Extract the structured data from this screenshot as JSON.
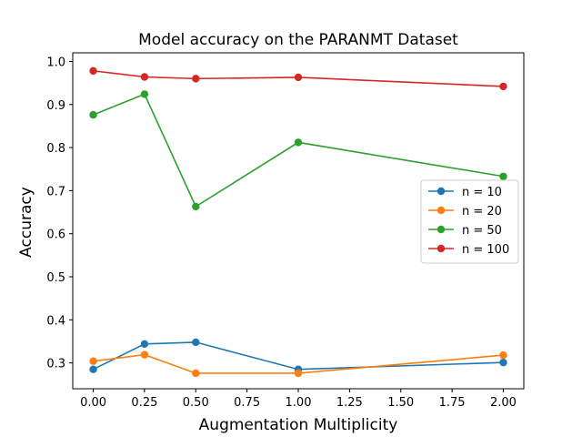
{
  "chart_data": {
    "type": "line",
    "title": "Model accuracy on the PARANMT Dataset",
    "xlabel": "Augmentation Multiplicity",
    "ylabel": "Accuracy",
    "x": [
      0.0,
      0.25,
      0.5,
      1.0,
      2.0
    ],
    "xlim": [
      -0.1,
      2.1
    ],
    "ylim": [
      0.24,
      1.02
    ],
    "xticks": [
      0.0,
      0.25,
      0.5,
      0.75,
      1.0,
      1.25,
      1.5,
      1.75,
      2.0
    ],
    "xtick_labels": [
      "0.00",
      "0.25",
      "0.50",
      "0.75",
      "1.00",
      "1.25",
      "1.50",
      "1.75",
      "2.00"
    ],
    "yticks": [
      0.3,
      0.4,
      0.5,
      0.6,
      0.7,
      0.8,
      0.9,
      1.0
    ],
    "ytick_labels": [
      "0.3",
      "0.4",
      "0.5",
      "0.6",
      "0.7",
      "0.8",
      "0.9",
      "1.0"
    ],
    "grid": false,
    "legend_position": "center-right",
    "series": [
      {
        "name": "n = 10",
        "color": "#1f77b4",
        "values": [
          0.285,
          0.344,
          0.348,
          0.285,
          0.301
        ]
      },
      {
        "name": "n = 20",
        "color": "#ff7f0e",
        "values": [
          0.304,
          0.319,
          0.276,
          0.276,
          0.318
        ]
      },
      {
        "name": "n = 50",
        "color": "#2ca02c",
        "values": [
          0.876,
          0.924,
          0.663,
          0.812,
          0.733
        ]
      },
      {
        "name": "n = 100",
        "color": "#d62728",
        "values": [
          0.978,
          0.964,
          0.96,
          0.963,
          0.942
        ]
      }
    ]
  }
}
